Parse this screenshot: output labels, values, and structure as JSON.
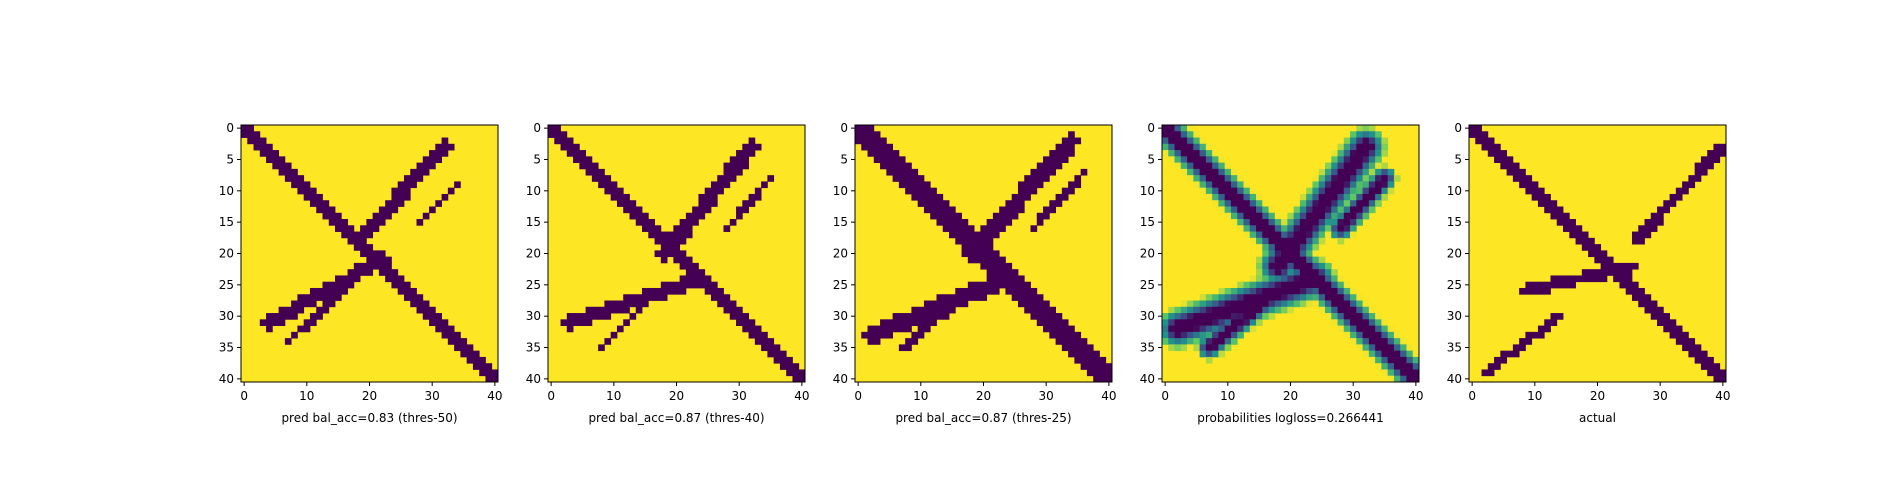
{
  "colors": {
    "background": "#fde725",
    "mark": "#440154",
    "mid_teal": "#21918c",
    "mid_green": "#5ec962",
    "axes_edge": "#000000"
  },
  "chart_data": [
    {
      "type": "heatmap",
      "title": "",
      "xlabel": "pred bal_acc=0.83 (thres-50)",
      "ylabel": "",
      "xlim": [
        0,
        40
      ],
      "ylim": [
        40,
        0
      ],
      "xticks": [
        0,
        10,
        20,
        30,
        40
      ],
      "yticks": [
        0,
        5,
        10,
        15,
        20,
        25,
        30,
        35,
        40
      ],
      "binary": true,
      "strokes": [
        {
          "from": [
            0,
            0
          ],
          "to": [
            40,
            40
          ],
          "width": 2.6
        },
        {
          "from": [
            32,
            3
          ],
          "to": [
            18,
            18
          ],
          "width": 2.2
        },
        {
          "from": [
            22,
            21
          ],
          "to": [
            4,
            31
          ],
          "width": 2.2
        },
        {
          "from": [
            17,
            25
          ],
          "to": [
            7,
            34
          ],
          "width": 1.1
        },
        {
          "from": [
            34,
            9
          ],
          "to": [
            28,
            15
          ],
          "width": 1.1
        }
      ]
    },
    {
      "type": "heatmap",
      "title": "",
      "xlabel": "pred bal_acc=0.87 (thres-40)",
      "ylabel": "",
      "xlim": [
        0,
        40
      ],
      "ylim": [
        40,
        0
      ],
      "xticks": [
        0,
        10,
        20,
        30,
        40
      ],
      "yticks": [
        0,
        5,
        10,
        15,
        20,
        25,
        30,
        35,
        40
      ],
      "binary": true,
      "strokes": [
        {
          "from": [
            0,
            0
          ],
          "to": [
            40,
            40
          ],
          "width": 2.8
        },
        {
          "from": [
            32,
            3
          ],
          "to": [
            18,
            20
          ],
          "width": 2.4
        },
        {
          "from": [
            24,
            24
          ],
          "to": [
            3,
            31
          ],
          "width": 2.4
        },
        {
          "from": [
            18,
            25
          ],
          "to": [
            8,
            35
          ],
          "width": 1.1
        },
        {
          "from": [
            35,
            8
          ],
          "to": [
            28,
            16
          ],
          "width": 1.1
        }
      ]
    },
    {
      "type": "heatmap",
      "title": "",
      "xlabel": "pred bal_acc=0.87 (thres-25)",
      "ylabel": "",
      "xlim": [
        0,
        40
      ],
      "ylim": [
        40,
        0
      ],
      "xticks": [
        0,
        10,
        20,
        30,
        40
      ],
      "yticks": [
        0,
        5,
        10,
        15,
        20,
        25,
        30,
        35,
        40
      ],
      "binary": true,
      "strokes": [
        {
          "from": [
            0,
            0
          ],
          "to": [
            40,
            40
          ],
          "width": 3.2
        },
        {
          "from": [
            34,
            2
          ],
          "to": [
            18,
            20
          ],
          "width": 2.8
        },
        {
          "from": [
            24,
            24
          ],
          "to": [
            2,
            33
          ],
          "width": 2.8
        },
        {
          "from": [
            18,
            26
          ],
          "to": [
            7,
            35
          ],
          "width": 1.3
        },
        {
          "from": [
            36,
            7
          ],
          "to": [
            28,
            16
          ],
          "width": 1.2
        }
      ]
    },
    {
      "type": "heatmap",
      "title": "",
      "xlabel": "probabilities logloss=0.266441",
      "ylabel": "",
      "xlim": [
        0,
        40
      ],
      "ylim": [
        40,
        0
      ],
      "xticks": [
        0,
        10,
        20,
        30,
        40
      ],
      "yticks": [
        0,
        5,
        10,
        15,
        20,
        25,
        30,
        35,
        40
      ],
      "binary": false,
      "strokes": [
        {
          "from": [
            0,
            0
          ],
          "to": [
            40,
            40
          ],
          "width": 2.6
        },
        {
          "from": [
            32,
            3
          ],
          "to": [
            18,
            22
          ],
          "width": 3.2
        },
        {
          "from": [
            24,
            24
          ],
          "to": [
            2,
            32
          ],
          "width": 3.2
        },
        {
          "from": [
            18,
            26
          ],
          "to": [
            7,
            35
          ],
          "width": 2.0
        },
        {
          "from": [
            35,
            8
          ],
          "to": [
            28,
            16
          ],
          "width": 2.0
        }
      ]
    },
    {
      "type": "heatmap",
      "title": "",
      "xlabel": "actual",
      "ylabel": "",
      "xlim": [
        0,
        40
      ],
      "ylim": [
        40,
        0
      ],
      "xticks": [
        0,
        10,
        20,
        30,
        40
      ],
      "yticks": [
        0,
        5,
        10,
        15,
        20,
        25,
        30,
        35,
        40
      ],
      "binary": true,
      "strokes": [
        {
          "from": [
            0,
            0
          ],
          "to": [
            40,
            40
          ],
          "width": 2.6
        },
        {
          "from": [
            40,
            3
          ],
          "to": [
            26,
            18
          ],
          "width": 1.8
        },
        {
          "from": [
            26,
            22
          ],
          "to": [
            8,
            26
          ],
          "width": 1.8
        },
        {
          "from": [
            14,
            30
          ],
          "to": [
            2,
            39
          ],
          "width": 1.6
        }
      ]
    }
  ]
}
